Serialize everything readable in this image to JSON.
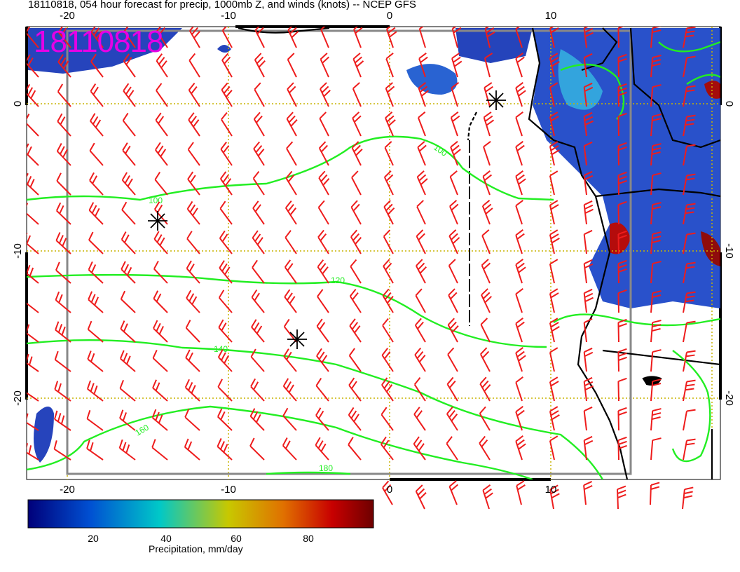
{
  "header": {
    "title": "18110818, 054 hour forecast for precip, 1000mb Z, and winds (knots) -- NCEP GFS",
    "stamp": "18110818"
  },
  "map": {
    "lon_ticks": [
      "-20",
      "-10",
      "0",
      "10"
    ],
    "lat_ticks": [
      "0",
      "-10",
      "-20"
    ],
    "contour_labels": [
      "100",
      "120",
      "140",
      "160",
      "180"
    ],
    "colors": {
      "contour": "#22ee22",
      "wind_barb": "#ee1c1c",
      "coast": "#000000",
      "grid": "#c8b400",
      "stamp": "#e600e6"
    }
  },
  "colorbar": {
    "label": "Precipitation, mm/day",
    "ticks": [
      "20",
      "40",
      "60",
      "80"
    ],
    "colors": [
      "#00007a",
      "#0050d2",
      "#00c8c8",
      "#c8c800",
      "#e07000",
      "#c80000",
      "#6e0000"
    ]
  }
}
